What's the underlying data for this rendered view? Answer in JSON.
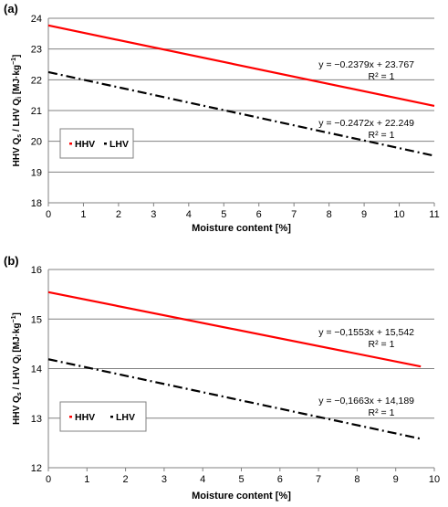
{
  "colors": {
    "hhv": "#ff0000",
    "lhv": "#000000",
    "grid": "#808080",
    "axis": "#808080"
  },
  "chart_data": [
    {
      "type": "line",
      "panel_label": "(a)",
      "xlabel": "Moisture content  [%]",
      "ylabel_parts": [
        "HHV Q",
        "s",
        " / LHV Q",
        "i",
        " [MJ·kg",
        "−1",
        "]"
      ],
      "xlim": [
        0,
        11
      ],
      "ylim": [
        18,
        24
      ],
      "xticks": [
        0,
        1,
        2,
        3,
        4,
        5,
        6,
        7,
        8,
        9,
        10,
        11
      ],
      "yticks": [
        18,
        19,
        20,
        21,
        22,
        23,
        24
      ],
      "grid": "horizontal",
      "legend_position": "left, lower middle",
      "series": [
        {
          "name": "HHV",
          "x": [
            0,
            11
          ],
          "y": [
            23.767,
            21.15
          ],
          "style": "solid",
          "color": "#ff0000",
          "equation": "y = −0.2379x + 23.767",
          "r2": "R² = 1"
        },
        {
          "name": "LHV",
          "x": [
            0,
            11
          ],
          "y": [
            22.249,
            19.53
          ],
          "style": "dash-dot",
          "color": "#000000",
          "equation": "y = −0.2472x + 22.249",
          "r2": "R² = 1"
        }
      ]
    },
    {
      "type": "line",
      "panel_label": "(b)",
      "xlabel": "Moisture content [%]",
      "ylabel_parts": [
        "HHV Q",
        "s",
        " / LHV Q",
        "i",
        " [MJ·kg",
        "−1",
        "]"
      ],
      "xlim": [
        0,
        10
      ],
      "ylim": [
        12,
        16
      ],
      "xticks": [
        0,
        1,
        2,
        3,
        4,
        5,
        6,
        7,
        8,
        9,
        10
      ],
      "yticks": [
        12,
        13,
        14,
        15,
        16
      ],
      "grid": "horizontal",
      "legend_position": "left, lower middle",
      "series": [
        {
          "name": "HHV",
          "x": [
            0,
            9.65
          ],
          "y": [
            15.542,
            14.043
          ],
          "style": "solid",
          "color": "#ff0000",
          "equation": "y = −0,1553x + 15,542",
          "r2": "R² = 1"
        },
        {
          "name": "LHV",
          "x": [
            0,
            9.65
          ],
          "y": [
            14.189,
            12.584
          ],
          "style": "dash-dot",
          "color": "#000000",
          "equation": "y = −0,1663x + 14,189",
          "r2": "R² = 1"
        }
      ]
    }
  ]
}
